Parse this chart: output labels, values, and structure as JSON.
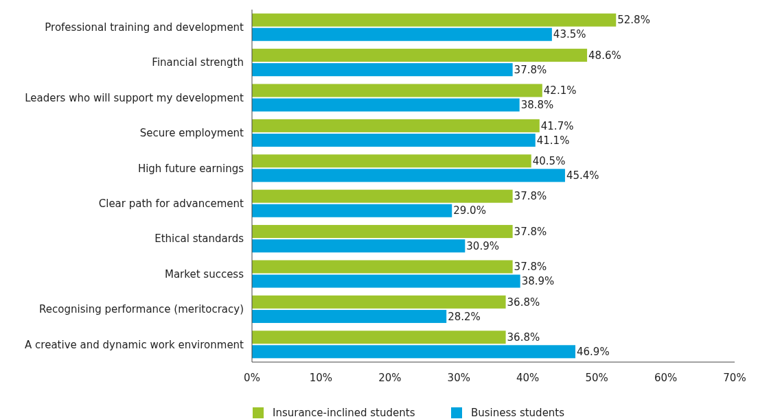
{
  "chart_data": {
    "type": "bar",
    "orientation": "horizontal",
    "categories": [
      "Professional training and development",
      "Financial strength",
      "Leaders who will support my development",
      "Secure employment",
      "High future earnings",
      "Clear path for advancement",
      "Ethical standards",
      "Market success",
      "Recognising performance (meritocracy)",
      "A creative and dynamic work environment"
    ],
    "series": [
      {
        "name": "Insurance-inclined students",
        "color": "#9dc42b",
        "values": [
          52.8,
          48.6,
          42.1,
          41.7,
          40.5,
          37.8,
          37.8,
          37.8,
          36.8,
          36.8
        ],
        "value_labels": [
          "52.8%",
          "48.6%",
          "42.1%",
          "41.7%",
          "40.5%",
          "37.8%",
          "37.8%",
          "37.8%",
          "36.8%",
          "36.8%"
        ]
      },
      {
        "name": "Business students",
        "color": "#00a3de",
        "values": [
          43.5,
          37.8,
          38.8,
          41.1,
          45.4,
          29.0,
          30.9,
          38.9,
          28.2,
          46.9
        ],
        "value_labels": [
          "43.5%",
          "37.8%",
          "38.8%",
          "41.1%",
          "45.4%",
          "29.0%",
          "30.9%",
          "38.9%",
          "28.2%",
          "46.9%"
        ]
      }
    ],
    "xlim": [
      0,
      70
    ],
    "xticks": [
      {
        "value": 0,
        "label": "0%"
      },
      {
        "value": 10,
        "label": "10%"
      },
      {
        "value": 20,
        "label": "20%"
      },
      {
        "value": 30,
        "label": "30%"
      },
      {
        "value": 40,
        "label": "40%"
      },
      {
        "value": 50,
        "label": "50%"
      },
      {
        "value": 60,
        "label": "60%"
      },
      {
        "value": 70,
        "label": "70%"
      }
    ],
    "grid": false,
    "legend": "bottom"
  }
}
